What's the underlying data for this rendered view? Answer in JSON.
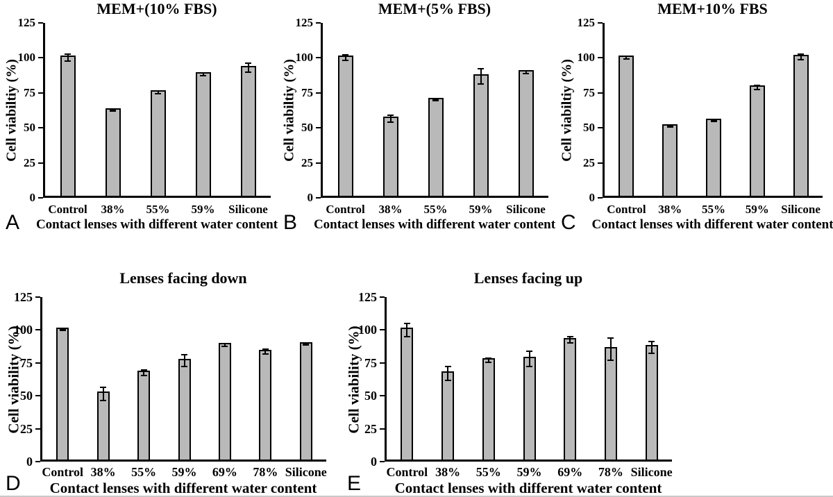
{
  "figure": {
    "background": "#ffffff",
    "bar_fill": "#b9b9b9",
    "bar_border": "#000000",
    "axis_color": "#000000",
    "text_color": "#000000"
  },
  "chart_data": [
    {
      "type": "bar",
      "panel_label": "A",
      "title": "MEM+(10% FBS)",
      "xlabel": "Contact lenses with different water content",
      "ylabel": "Cell viabiltiy (%)",
      "categories": [
        "Control",
        "38%",
        "55%",
        "59%",
        "Silicone"
      ],
      "values": [
        100,
        62.5,
        75.5,
        88.5,
        93
      ],
      "errors": [
        3,
        1,
        1.5,
        1.5,
        3.5
      ],
      "ylim": [
        0,
        125
      ],
      "yticks": [
        0,
        25,
        50,
        75,
        100,
        125
      ],
      "grid": false,
      "legend": false
    },
    {
      "type": "bar",
      "panel_label": "B",
      "title": "MEM+(5% FBS)",
      "xlabel": "Contact lenses with different water content",
      "ylabel": "Cell viabiltiy (%)",
      "categories": [
        "Control",
        "38%",
        "55%",
        "59%",
        "Silicone"
      ],
      "values": [
        100,
        56.5,
        70,
        87,
        90
      ],
      "errors": [
        2.5,
        3,
        1,
        6,
        1.5
      ],
      "ylim": [
        0,
        125
      ],
      "yticks": [
        0,
        25,
        50,
        75,
        100,
        125
      ],
      "grid": false,
      "legend": false
    },
    {
      "type": "bar",
      "panel_label": "C",
      "title": "MEM+10% FBS",
      "xlabel": "Contact lenses with different water content",
      "ylabel": "Cell viabiltiy (%)",
      "categories": [
        "Control",
        "38%",
        "55%",
        "59%",
        "Silicone"
      ],
      "values": [
        100,
        51,
        55,
        79,
        100.5
      ],
      "errors": [
        1.5,
        1,
        1,
        2,
        2.5
      ],
      "ylim": [
        0,
        125
      ],
      "yticks": [
        0,
        25,
        50,
        75,
        100,
        125
      ],
      "grid": false,
      "legend": false
    },
    {
      "type": "bar",
      "panel_label": "D",
      "title": "Lenses facing down",
      "xlabel": "Contact lenses with different water content",
      "ylabel": "Cell viability (%)",
      "categories": [
        "Control",
        "38%",
        "55%",
        "59%",
        "69%",
        "78%",
        "Silicone"
      ],
      "values": [
        100,
        51.5,
        67.5,
        76.5,
        88.5,
        83.5,
        89
      ],
      "errors": [
        1,
        5.5,
        2.5,
        5,
        1.5,
        2.5,
        1
      ],
      "ylim": [
        0,
        125
      ],
      "yticks": [
        0,
        25,
        50,
        75,
        100,
        125
      ],
      "grid": false,
      "legend": false
    },
    {
      "type": "bar",
      "panel_label": "E",
      "title": "Lenses facing up",
      "xlabel": "Contact lenses with different water content",
      "ylabel": "Cell viability (%)",
      "categories": [
        "Control",
        "38%",
        "55%",
        "59%",
        "69%",
        "78%",
        "Silicone"
      ],
      "values": [
        100,
        67,
        77,
        78,
        92.5,
        85.5,
        87
      ],
      "errors": [
        5.5,
        6,
        2,
        6.5,
        3,
        9,
        5
      ],
      "ylim": [
        0,
        125
      ],
      "yticks": [
        0,
        25,
        50,
        75,
        100,
        125
      ],
      "grid": false,
      "legend": false
    }
  ]
}
